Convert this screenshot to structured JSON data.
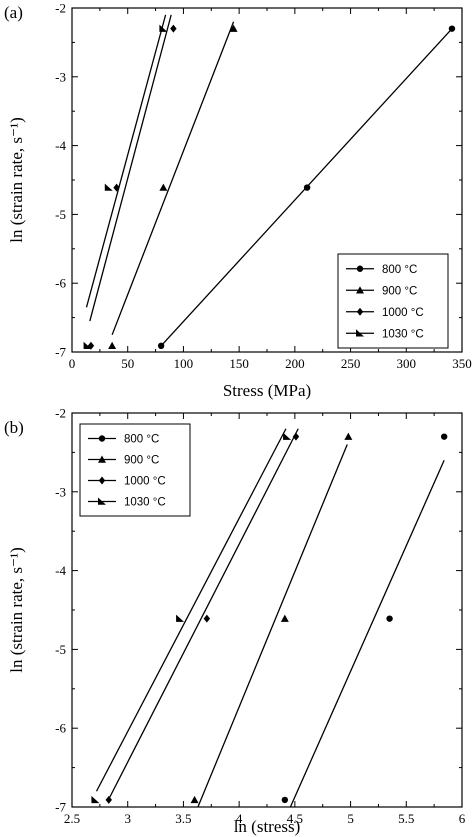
{
  "chart_data": [
    {
      "type": "scatter",
      "panel_label": "(a)",
      "xlabel": "Stress (MPa)",
      "ylabel": "ln (strain rate, s⁻¹)",
      "xlim": [
        0,
        350
      ],
      "ylim": [
        -7,
        -2
      ],
      "x_ticks": [
        0,
        50,
        100,
        150,
        200,
        250,
        300,
        350
      ],
      "y_ticks": [
        -7,
        -6,
        -5,
        -4,
        -3,
        -2
      ],
      "legend_position": "bottom-right",
      "series": [
        {
          "name": "800 °C",
          "marker": "circle",
          "points": [
            [
              80,
              -6.91
            ],
            [
              211,
              -4.61
            ],
            [
              341,
              -2.3
            ]
          ],
          "fit": [
            [
              80,
              -6.91
            ],
            [
              341,
              -2.3
            ]
          ]
        },
        {
          "name": "900 °C",
          "marker": "triangle",
          "points": [
            [
              36,
              -6.91
            ],
            [
              82,
              -4.61
            ],
            [
              145,
              -2.3
            ]
          ],
          "fit": [
            [
              36,
              -6.75
            ],
            [
              145,
              -2.2
            ]
          ]
        },
        {
          "name": "1000 °C",
          "marker": "diamond",
          "points": [
            [
              17,
              -6.91
            ],
            [
              40,
              -4.61
            ],
            [
              91,
              -2.3
            ]
          ],
          "fit": [
            [
              16,
              -6.55
            ],
            [
              89,
              -2.1
            ]
          ]
        },
        {
          "name": "1030 °C",
          "marker": "half-triangle",
          "points": [
            [
              14,
              -6.91
            ],
            [
              33,
              -4.61
            ],
            [
              82,
              -2.3
            ]
          ],
          "fit": [
            [
              13,
              -6.35
            ],
            [
              84,
              -2.1
            ]
          ]
        }
      ]
    },
    {
      "type": "scatter",
      "panel_label": "(b)",
      "xlabel": "ln (stress)",
      "ylabel": "ln (strain rate, s⁻¹)",
      "xlim": [
        2.5,
        6.0
      ],
      "ylim": [
        -7,
        -2
      ],
      "x_ticks": [
        2.5,
        3.0,
        3.5,
        4.0,
        4.5,
        5.0,
        5.5,
        6.0
      ],
      "x_tick_labels": [
        "2.5",
        "3",
        "3.5",
        "4",
        "4.5",
        "5",
        "5.5",
        "6"
      ],
      "y_ticks": [
        -7,
        -6,
        -5,
        -4,
        -3,
        -2
      ],
      "legend_position": "top-left",
      "series": [
        {
          "name": "800 °C",
          "marker": "circle",
          "points": [
            [
              4.41,
              -6.91
            ],
            [
              5.35,
              -4.61
            ],
            [
              5.84,
              -2.3
            ]
          ],
          "fit": [
            [
              4.46,
              -7.0
            ],
            [
              5.84,
              -2.6
            ]
          ]
        },
        {
          "name": "900 °C",
          "marker": "triangle",
          "points": [
            [
              3.6,
              -6.91
            ],
            [
              4.41,
              -4.61
            ],
            [
              4.98,
              -2.3
            ]
          ],
          "fit": [
            [
              3.63,
              -7.0
            ],
            [
              4.97,
              -2.4
            ]
          ]
        },
        {
          "name": "1000 °C",
          "marker": "diamond",
          "points": [
            [
              2.83,
              -6.91
            ],
            [
              3.71,
              -4.61
            ],
            [
              4.51,
              -2.3
            ]
          ],
          "fit": [
            [
              2.83,
              -6.9
            ],
            [
              4.53,
              -2.2
            ]
          ]
        },
        {
          "name": "1030 °C",
          "marker": "half-triangle",
          "points": [
            [
              2.71,
              -6.91
            ],
            [
              3.47,
              -4.61
            ],
            [
              4.43,
              -2.3
            ]
          ],
          "fit": [
            [
              2.72,
              -6.8
            ],
            [
              4.42,
              -2.2
            ]
          ]
        }
      ]
    }
  ]
}
